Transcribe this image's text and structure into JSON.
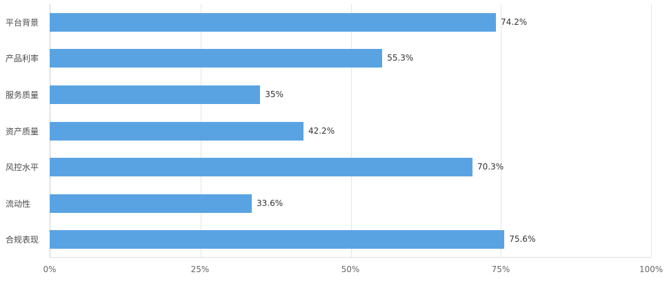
{
  "chart_data": {
    "type": "bar",
    "orientation": "horizontal",
    "title": "",
    "categories": [
      "平台背景",
      "产品利率",
      "服务质量",
      "资产质量",
      "风控水平",
      "流动性",
      "合规表现"
    ],
    "values": [
      74.2,
      55.3,
      35,
      42.2,
      70.3,
      33.6,
      75.6
    ],
    "value_labels": [
      "74.2%",
      "55.3%",
      "35%",
      "42.2%",
      "70.3%",
      "33.6%",
      "75.6%"
    ],
    "x_ticks": [
      "0%",
      "25%",
      "50%",
      "75%",
      "100%"
    ],
    "x_tick_values": [
      0,
      25,
      50,
      75,
      100
    ],
    "xlim": [
      0,
      100
    ],
    "grid": true,
    "legend": false,
    "bar_color": "#5AA3E3",
    "gridline_color": "#e4e4e4",
    "axis_color": "#cccccc"
  }
}
